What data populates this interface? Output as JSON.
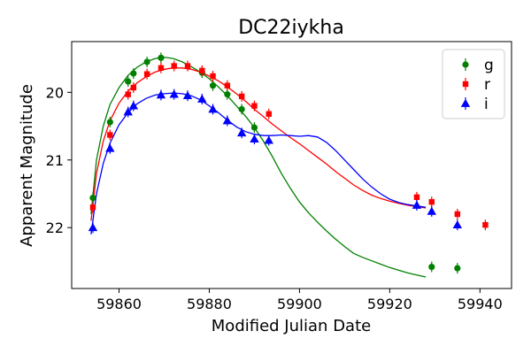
{
  "chart_data": {
    "type": "scatter",
    "title": "DC22iykha",
    "xlabel": "Modified Julian Date",
    "ylabel": "Apparent Magnitude",
    "xlim": [
      59849.5,
      59947.0
    ],
    "ylim": [
      22.9,
      19.25
    ],
    "y_inverted": true,
    "grid": false,
    "legend_position": "top-right",
    "xticks": [
      59860,
      59880,
      59900,
      59920,
      59940
    ],
    "yticks": [
      20,
      21,
      22
    ],
    "series": [
      {
        "name": "g",
        "color": "#008000",
        "marker": "circle",
        "points": [
          [
            59854.2,
            21.56
          ],
          [
            59858.0,
            20.44
          ],
          [
            59862.0,
            19.84
          ],
          [
            59863.2,
            19.72
          ],
          [
            59866.2,
            19.55
          ],
          [
            59869.3,
            19.49
          ],
          [
            59878.4,
            19.71
          ],
          [
            59880.8,
            19.9
          ],
          [
            59884.0,
            20.03
          ],
          [
            59887.2,
            20.25
          ],
          [
            59890.0,
            20.52
          ],
          [
            59929.3,
            22.58
          ],
          [
            59935.0,
            22.6
          ]
        ],
        "model": [
          [
            59853.8,
            21.8
          ],
          [
            59855.0,
            21.0
          ],
          [
            59856.5,
            20.5
          ],
          [
            59858.0,
            20.18
          ],
          [
            59860.0,
            19.93
          ],
          [
            59862.0,
            19.75
          ],
          [
            59864.0,
            19.63
          ],
          [
            59866.0,
            19.55
          ],
          [
            59868.0,
            19.5
          ],
          [
            59870.0,
            19.48
          ],
          [
            59872.0,
            19.5
          ],
          [
            59874.0,
            19.55
          ],
          [
            59876.0,
            19.62
          ],
          [
            59878.0,
            19.7
          ],
          [
            59880.0,
            19.8
          ],
          [
            59882.0,
            19.92
          ],
          [
            59884.0,
            20.05
          ],
          [
            59886.0,
            20.2
          ],
          [
            59888.0,
            20.35
          ],
          [
            59890.0,
            20.52
          ],
          [
            59892.0,
            20.72
          ],
          [
            59894.0,
            20.95
          ],
          [
            59896.0,
            21.2
          ],
          [
            59898.0,
            21.42
          ],
          [
            59900.0,
            21.62
          ],
          [
            59902.0,
            21.78
          ],
          [
            59904.0,
            21.92
          ],
          [
            59906.0,
            22.05
          ],
          [
            59908.0,
            22.17
          ],
          [
            59910.0,
            22.28
          ],
          [
            59912.0,
            22.38
          ],
          [
            59914.0,
            22.44
          ],
          [
            59916.0,
            22.49
          ],
          [
            59918.0,
            22.54
          ],
          [
            59920.0,
            22.59
          ],
          [
            59922.0,
            22.63
          ],
          [
            59924.0,
            22.67
          ],
          [
            59926.0,
            22.7
          ],
          [
            59928.0,
            22.73
          ]
        ]
      },
      {
        "name": "r",
        "color": "#ff0000",
        "marker": "square",
        "points": [
          [
            59854.2,
            21.7
          ],
          [
            59858.0,
            20.63
          ],
          [
            59862.0,
            20.03
          ],
          [
            59863.2,
            19.93
          ],
          [
            59866.2,
            19.73
          ],
          [
            59869.3,
            19.64
          ],
          [
            59872.2,
            19.61
          ],
          [
            59875.2,
            19.61
          ],
          [
            59878.4,
            19.68
          ],
          [
            59880.8,
            19.76
          ],
          [
            59884.0,
            19.9
          ],
          [
            59887.2,
            20.06
          ],
          [
            59890.0,
            20.2
          ],
          [
            59893.2,
            20.32
          ],
          [
            59926.0,
            21.55
          ],
          [
            59929.3,
            21.62
          ],
          [
            59935.0,
            21.8
          ],
          [
            59941.2,
            21.96
          ]
        ],
        "model": [
          [
            59853.8,
            21.9
          ],
          [
            59855.0,
            21.2
          ],
          [
            59856.5,
            20.72
          ],
          [
            59858.0,
            20.42
          ],
          [
            59860.0,
            20.16
          ],
          [
            59862.0,
            19.98
          ],
          [
            59864.0,
            19.86
          ],
          [
            59866.0,
            19.77
          ],
          [
            59868.0,
            19.7
          ],
          [
            59870.0,
            19.66
          ],
          [
            59872.0,
            19.64
          ],
          [
            59874.0,
            19.64
          ],
          [
            59876.0,
            19.66
          ],
          [
            59878.0,
            19.7
          ],
          [
            59880.0,
            19.76
          ],
          [
            59882.0,
            19.83
          ],
          [
            59884.0,
            19.92
          ],
          [
            59886.0,
            20.02
          ],
          [
            59888.0,
            20.13
          ],
          [
            59890.0,
            20.25
          ],
          [
            59892.0,
            20.36
          ],
          [
            59894.0,
            20.47
          ],
          [
            59896.0,
            20.57
          ],
          [
            59898.0,
            20.67
          ],
          [
            59900.0,
            20.76
          ],
          [
            59902.0,
            20.86
          ],
          [
            59904.0,
            20.96
          ],
          [
            59906.0,
            21.06
          ],
          [
            59908.0,
            21.17
          ],
          [
            59910.0,
            21.27
          ],
          [
            59912.0,
            21.37
          ],
          [
            59914.0,
            21.45
          ],
          [
            59916.0,
            21.52
          ],
          [
            59918.0,
            21.57
          ],
          [
            59920.0,
            21.61
          ],
          [
            59922.0,
            21.64
          ],
          [
            59924.0,
            21.67
          ],
          [
            59926.0,
            21.69
          ],
          [
            59928.0,
            21.71
          ]
        ]
      },
      {
        "name": "i",
        "color": "#0000ff",
        "marker": "triangle",
        "points": [
          [
            59854.2,
            22.0
          ],
          [
            59858.0,
            20.83
          ],
          [
            59862.0,
            20.29
          ],
          [
            59863.2,
            20.2
          ],
          [
            59869.3,
            20.04
          ],
          [
            59872.2,
            20.03
          ],
          [
            59875.2,
            20.05
          ],
          [
            59878.4,
            20.1
          ],
          [
            59880.8,
            20.25
          ],
          [
            59884.0,
            20.42
          ],
          [
            59887.2,
            20.6
          ],
          [
            59890.0,
            20.69
          ],
          [
            59893.2,
            20.71
          ],
          [
            59926.0,
            21.67
          ],
          [
            59929.3,
            21.76
          ],
          [
            59935.0,
            21.96
          ]
        ],
        "model": [
          [
            59853.8,
            22.1
          ],
          [
            59855.0,
            21.5
          ],
          [
            59856.5,
            21.05
          ],
          [
            59858.0,
            20.75
          ],
          [
            59860.0,
            20.48
          ],
          [
            59862.0,
            20.3
          ],
          [
            59864.0,
            20.17
          ],
          [
            59866.0,
            20.09
          ],
          [
            59868.0,
            20.04
          ],
          [
            59870.0,
            20.02
          ],
          [
            59872.0,
            20.01
          ],
          [
            59874.0,
            20.02
          ],
          [
            59876.0,
            20.05
          ],
          [
            59878.0,
            20.11
          ],
          [
            59880.0,
            20.2
          ],
          [
            59882.0,
            20.3
          ],
          [
            59884.0,
            20.41
          ],
          [
            59886.0,
            20.51
          ],
          [
            59888.0,
            20.58
          ],
          [
            59890.0,
            20.62
          ],
          [
            59892.0,
            20.64
          ],
          [
            59894.0,
            20.64
          ],
          [
            59896.0,
            20.63
          ],
          [
            59898.0,
            20.64
          ],
          [
            59900.0,
            20.65
          ],
          [
            59902.0,
            20.64
          ],
          [
            59904.0,
            20.66
          ],
          [
            59906.0,
            20.74
          ],
          [
            59908.0,
            20.86
          ],
          [
            59910.0,
            21.0
          ],
          [
            59912.0,
            21.14
          ],
          [
            59914.0,
            21.28
          ],
          [
            59916.0,
            21.4
          ],
          [
            59918.0,
            21.5
          ],
          [
            59920.0,
            21.58
          ],
          [
            59922.0,
            21.63
          ],
          [
            59924.0,
            21.66
          ],
          [
            59926.0,
            21.68
          ],
          [
            59928.0,
            21.7
          ]
        ]
      }
    ]
  }
}
